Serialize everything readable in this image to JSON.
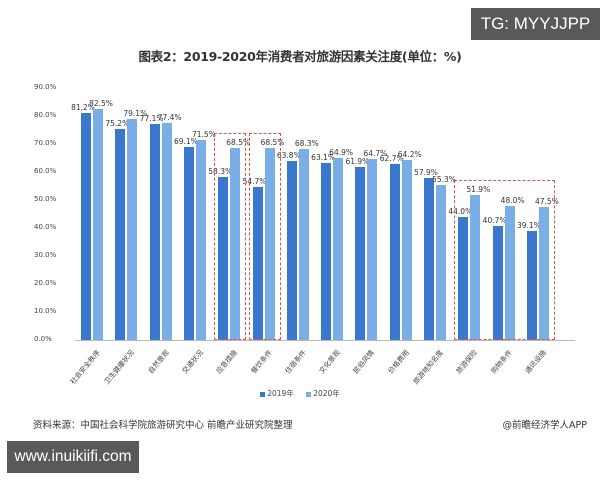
{
  "watermarks": {
    "top_right": "TG: MYYJJPP",
    "bottom_left": "www.inuikiifi.com"
  },
  "chart_data": {
    "type": "bar",
    "title": "图表2：2019-2020年消费者对旅游因素关注度(单位：%)",
    "xlabel": "",
    "ylabel": "",
    "ylim": [
      0,
      90
    ],
    "y_ticks": [
      "0.0%",
      "10.0%",
      "20.0%",
      "30.0%",
      "40.0%",
      "50.0%",
      "60.0%",
      "70.0%",
      "80.0%",
      "90.0%"
    ],
    "grid": false,
    "legend_position": "bottom",
    "categories": [
      "社会安全秩序",
      "卫生健康状况",
      "自然景观",
      "交通状况",
      "应急措施",
      "餐饮条件",
      "住宿条件",
      "文化景观",
      "民俗风情",
      "价格费用",
      "旅游地知名度",
      "旅游保险",
      "购物条件",
      "通讯设施"
    ],
    "series": [
      {
        "name": "2019年",
        "color": "#3a78d0",
        "values": [
          81.2,
          75.2,
          77.1,
          69.1,
          58.3,
          54.7,
          63.8,
          63.1,
          61.9,
          62.7,
          57.9,
          44.0,
          40.7,
          39.1
        ]
      },
      {
        "name": "2020年",
        "color": "#7aaee6",
        "values": [
          82.5,
          79.1,
          77.4,
          71.5,
          68.5,
          68.5,
          68.3,
          64.9,
          64.7,
          64.2,
          55.3,
          51.9,
          48.0,
          47.5
        ]
      }
    ],
    "highlight_boxes": [
      {
        "categories": [
          "应急措施"
        ],
        "color": "#d9534f"
      },
      {
        "categories": [
          "餐饮条件"
        ],
        "color": "#d9534f"
      },
      {
        "categories": [
          "旅游保险",
          "购物条件",
          "通讯设施"
        ],
        "color": "#d9534f"
      }
    ]
  },
  "footer": {
    "source": "资料来源：中国社会科学院旅游研究中心 前瞻产业研究院整理",
    "brand": "@前瞻经济学人APP"
  }
}
